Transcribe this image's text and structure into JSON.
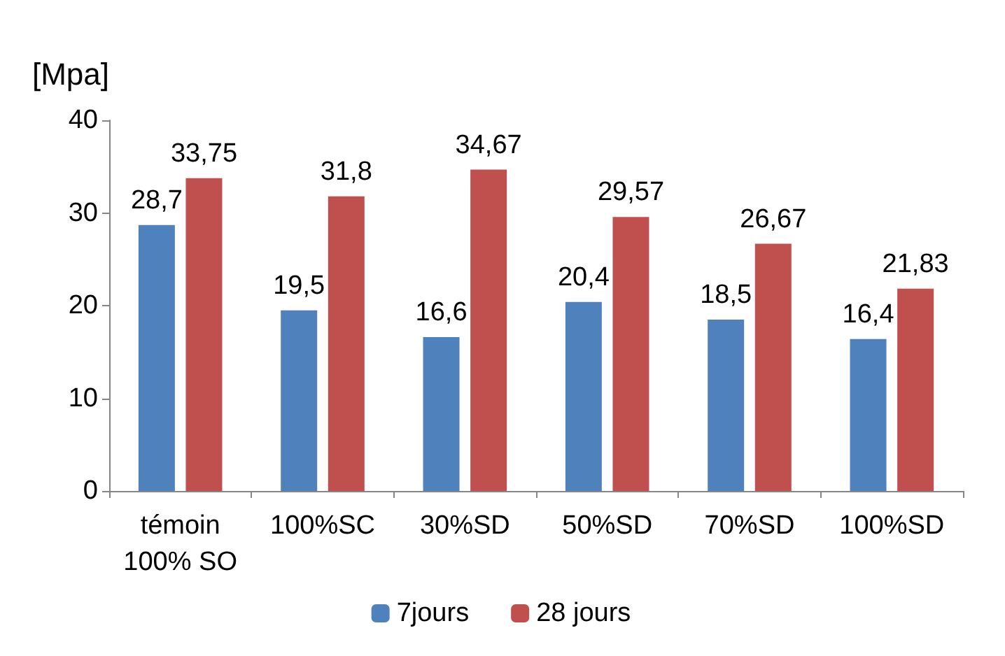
{
  "chart_data": {
    "type": "bar",
    "ylabel": "[Mpa]",
    "categories": [
      "témoin\n100% SO",
      "100%SC",
      "30%SD",
      "50%SD",
      "70%SD",
      "100%SD"
    ],
    "series": [
      {
        "name": "7jours",
        "color": "#4f81bd",
        "values": [
          28.7,
          19.5,
          16.6,
          20.4,
          18.5,
          16.4
        ],
        "value_labels": [
          "28,7",
          "19,5",
          "16,6",
          "20,4",
          "18,5",
          "16,4"
        ]
      },
      {
        "name": "28 jours",
        "color": "#c0504d",
        "values": [
          33.75,
          31.8,
          34.67,
          29.57,
          26.67,
          21.83
        ],
        "value_labels": [
          "33,75",
          "31,8",
          "34,67",
          "29,57",
          "26,67",
          "21,83"
        ]
      }
    ],
    "ylim": [
      0,
      40
    ],
    "yticks": [
      0,
      10,
      20,
      30,
      40
    ],
    "grid": false,
    "legend": "bottom"
  }
}
